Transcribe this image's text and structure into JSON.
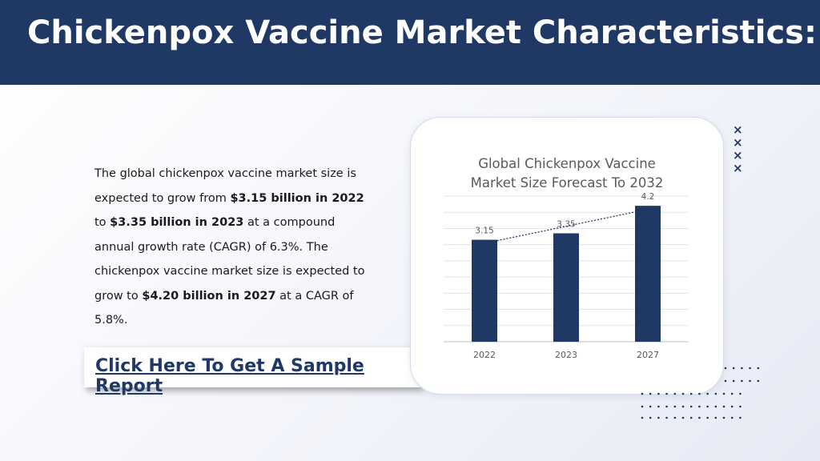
{
  "header": {
    "title": "Chickenpox Vaccine Market Characteristics:"
  },
  "description": {
    "parts": [
      {
        "text": "The global chickenpox vaccine market size is expected to grow from ",
        "bold": false
      },
      {
        "text": "$3.15 billion in 2022",
        "bold": true
      },
      {
        "text": " to ",
        "bold": false
      },
      {
        "text": "$3.35 billion in 2023",
        "bold": true
      },
      {
        "text": " at a compound annual growth rate (CAGR) of 6.3%. The chickenpox vaccine market size is expected to grow to ",
        "bold": false
      },
      {
        "text": "$4.20 billion in 2027",
        "bold": true
      },
      {
        "text": " at a CAGR of 5.8%.",
        "bold": false
      }
    ]
  },
  "cta": {
    "label": "Click Here To Get A Sample Report"
  },
  "chart_data": {
    "type": "bar",
    "title": "Global Chickenpox Vaccine Market Size Forecast To 2032",
    "title_lines": [
      "Global Chickenpox Vaccine",
      "Market Size Forecast To 2032"
    ],
    "categories": [
      "2022",
      "2023",
      "2027"
    ],
    "values": [
      3.15,
      3.35,
      4.2
    ],
    "value_labels": [
      "3.15",
      "3.35",
      "4.2"
    ],
    "ylim": [
      0,
      4.5
    ],
    "grid": true,
    "trendline": true,
    "bar_color": "#1f3864",
    "trendline_color": "#1f3864"
  },
  "decorations": {
    "x_marks": [
      "×",
      "×",
      "×",
      "×"
    ],
    "accent_color": "#1f3864"
  }
}
